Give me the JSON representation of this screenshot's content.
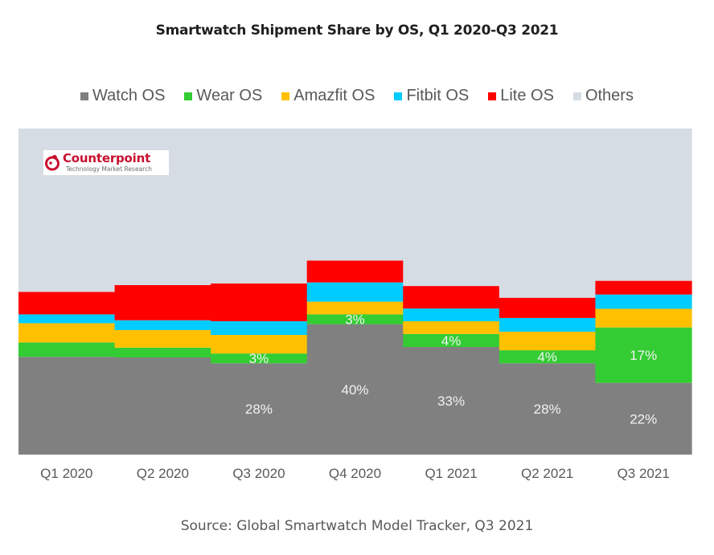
{
  "chart_data": {
    "type": "bar",
    "stacked": true,
    "title": "Smartwatch Shipment Share by OS, Q1 2020-Q3 2021",
    "xlabel": "",
    "ylabel": "",
    "ylim": [
      0,
      100
    ],
    "grid": false,
    "legend_position": "top",
    "categories": [
      "Q1 2020",
      "Q2 2020",
      "Q3 2020",
      "Q4 2020",
      "Q1 2021",
      "Q2 2021",
      "Q3 2021"
    ],
    "series": [
      {
        "name": "Watch OS",
        "color": "#808080",
        "values": [
          30.0,
          29.8,
          28,
          40,
          33,
          28,
          22
        ],
        "labels": [
          "",
          "",
          "28%",
          "40%",
          "33%",
          "28%",
          "22%"
        ]
      },
      {
        "name": "Wear OS",
        "color": "#33cc33",
        "values": [
          4.4,
          3.0,
          3,
          3,
          4,
          4,
          17
        ],
        "labels": [
          "",
          "",
          "3%",
          "3%",
          "4%",
          "4%",
          "17%"
        ]
      },
      {
        "name": "Amazfit OS",
        "color": "#ffc000",
        "values": [
          5.9,
          5.4,
          5.7,
          3.9,
          3.9,
          5.7,
          5.7
        ],
        "labels": [
          "",
          "",
          "",
          "",
          "",
          "",
          ""
        ]
      },
      {
        "name": "Fitbit OS",
        "color": "#00ccff",
        "values": [
          2.7,
          3.0,
          4.2,
          5.9,
          3.9,
          4.2,
          4.4
        ],
        "labels": [
          "",
          "",
          "",
          "",
          "",
          "",
          ""
        ]
      },
      {
        "name": "Lite OS",
        "color": "#ff0000",
        "values": [
          6.9,
          10.8,
          11.6,
          6.7,
          6.9,
          6.2,
          4.2
        ],
        "labels": [
          "",
          "",
          "",
          "",
          "",
          "",
          ""
        ]
      },
      {
        "name": "Others",
        "color": "#d6dce4",
        "values": [
          50.1,
          48.0,
          47.5,
          40.5,
          48.3,
          51.9,
          46.7
        ],
        "labels": [
          "",
          "",
          "",
          "",
          "",
          "",
          ""
        ]
      }
    ],
    "annotations": [
      "Counterpoint",
      "Technology Market Research"
    ],
    "source": "Source: Global Smartwatch Model Tracker, Q3 2021"
  },
  "logo": {
    "name": "Counterpoint",
    "tagline": "Technology Market Research",
    "icon": "counterpoint-logo-icon"
  }
}
